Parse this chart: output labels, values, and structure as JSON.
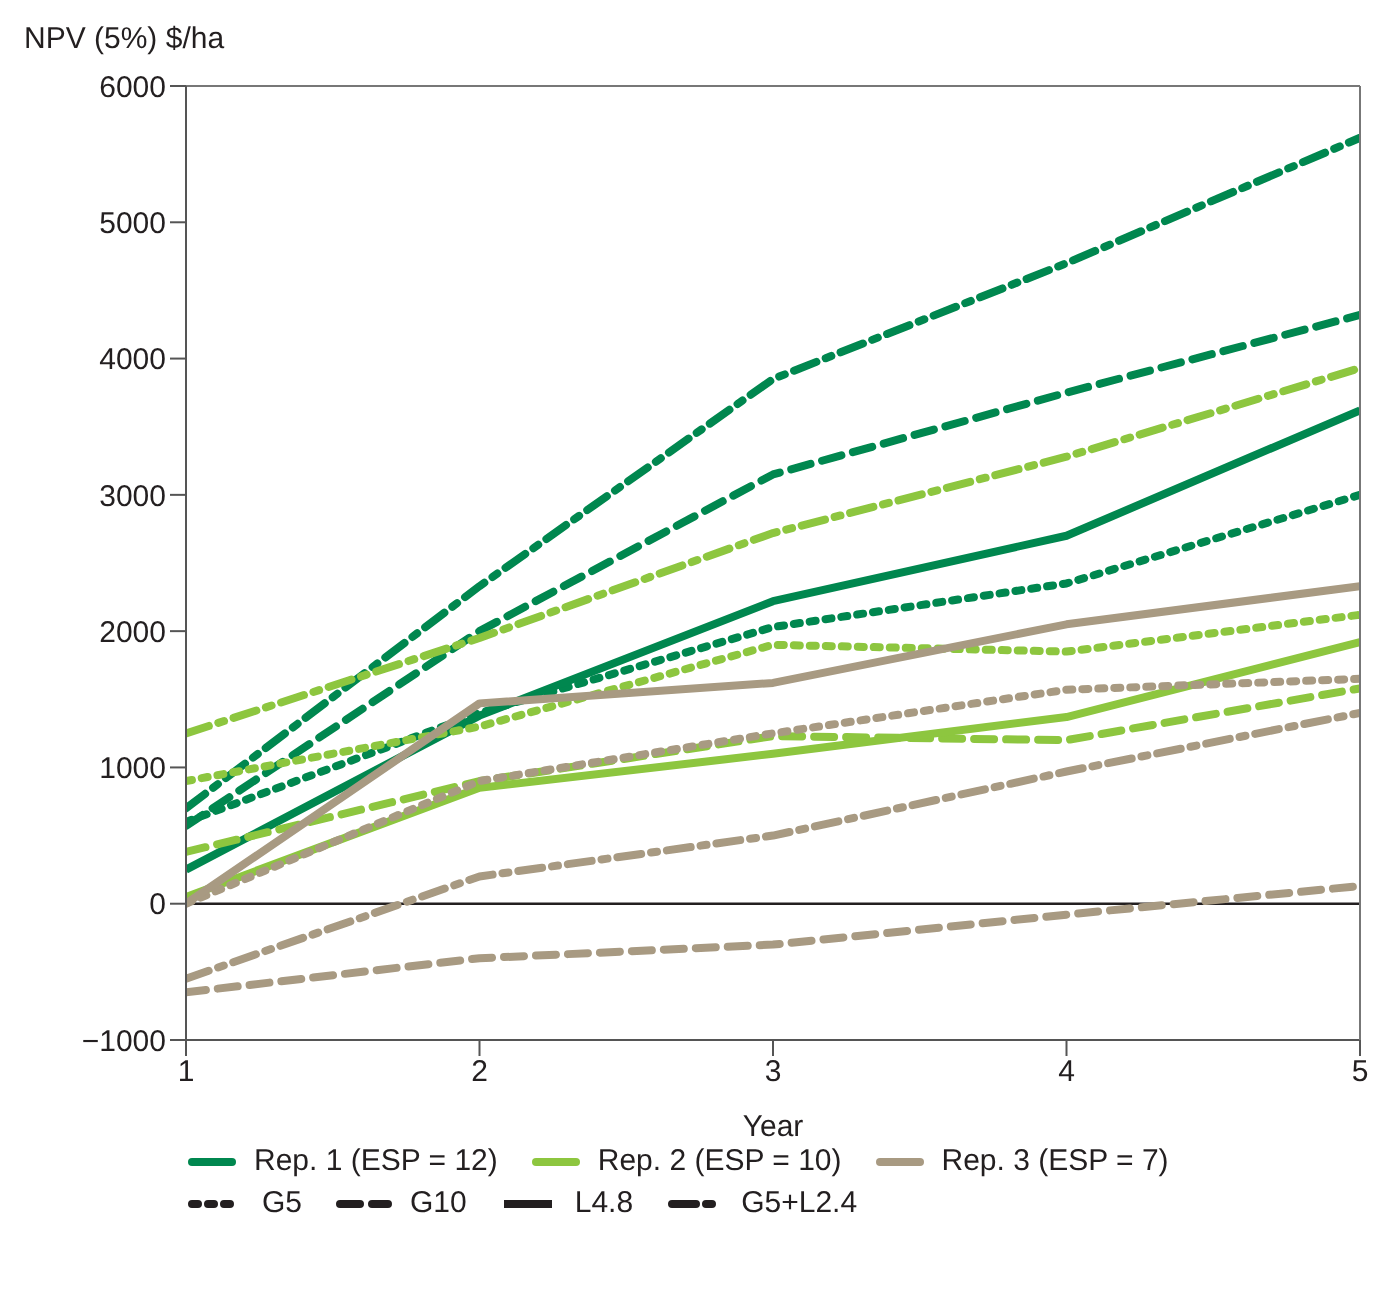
{
  "chart_data": {
    "type": "line",
    "ylabel": "NPV (5%) $/ha",
    "xlabel": "Year",
    "x": [
      1,
      2,
      3,
      4,
      5
    ],
    "xlim": [
      1,
      5
    ],
    "xticks": [
      1,
      2,
      3,
      4,
      5
    ],
    "ylim": [
      -1000,
      6000
    ],
    "yticks": [
      {
        "value": -1000,
        "label": "−1000"
      },
      0,
      1000,
      2000,
      3000,
      4000,
      5000,
      6000
    ],
    "marker": "none",
    "ref_lines": [
      {
        "axis": "y",
        "value": 0,
        "color": "#231f20"
      }
    ],
    "annotations": [
      "Rep. 1 (ESP = 12)",
      "Rep. 2 (ESP = 10)",
      "Rep. 3 (ESP = 7)",
      "G5",
      "G10",
      "L4.8",
      "G5+L2.4"
    ],
    "series": [
      {
        "color": "#00874f",
        "line_style": "dotted",
        "values": [
          600,
          1400,
          2030,
          2350,
          3000
        ]
      },
      {
        "color": "#00874f",
        "line_style": "dashed",
        "values": [
          570,
          2000,
          3150,
          3750,
          4320
        ]
      },
      {
        "color": "#00874f",
        "line_style": "solid",
        "values": [
          250,
          1380,
          2220,
          2700,
          3620
        ]
      },
      {
        "color": "#00874f",
        "line_style": "dashdot",
        "values": [
          700,
          2330,
          3850,
          4700,
          5620
        ]
      },
      {
        "color": "#8dc63f",
        "line_style": "dotted",
        "values": [
          900,
          1300,
          1900,
          1850,
          2120
        ]
      },
      {
        "color": "#8dc63f",
        "line_style": "dashed",
        "values": [
          380,
          900,
          1230,
          1200,
          1580
        ]
      },
      {
        "color": "#8dc63f",
        "line_style": "solid",
        "values": [
          50,
          850,
          1100,
          1370,
          1920
        ]
      },
      {
        "color": "#8dc63f",
        "line_style": "dashdot",
        "values": [
          1250,
          1950,
          2720,
          3280,
          3930
        ]
      },
      {
        "color": "#a89a82",
        "line_style": "dotted",
        "values": [
          0,
          900,
          1250,
          1570,
          1650
        ]
      },
      {
        "color": "#a89a82",
        "line_style": "dashed",
        "values": [
          -650,
          -400,
          -300,
          -80,
          130
        ]
      },
      {
        "color": "#a89a82",
        "line_style": "solid",
        "values": [
          0,
          1470,
          1620,
          2050,
          2330
        ]
      },
      {
        "color": "#a89a82",
        "line_style": "dashdot",
        "values": [
          -550,
          200,
          500,
          970,
          1400
        ]
      }
    ]
  }
}
